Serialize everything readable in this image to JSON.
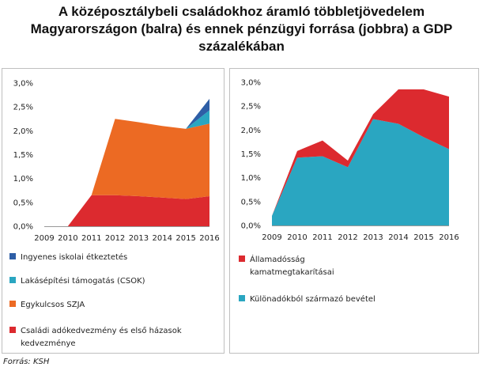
{
  "title_lines": [
    "A középosztálybeli családokhoz áramló többletjövedelem",
    "Magyarországon (balra) és ennek pénzügyi forrása (jobbra) a GDP",
    "százalékában"
  ],
  "source": "Forrás: KSH",
  "chart_data": [
    {
      "type": "area",
      "stacked": true,
      "x": [
        "2009",
        "2010",
        "2011",
        "2012",
        "2013",
        "2014",
        "2015",
        "2016"
      ],
      "yticks": [
        "0,0%",
        "0,5%",
        "1,0%",
        "1,5%",
        "2,0%",
        "2,5%",
        "3,0%"
      ],
      "ylim": [
        0,
        3.0
      ],
      "series": [
        {
          "name": "Családi adókedvezmény és első házasok kedvezménye",
          "name_lines": [
            "Családi adókedvezmény és első házasok",
            "kedvezménye"
          ],
          "color": "#dc2a2f",
          "values": [
            0,
            0,
            0.65,
            0.65,
            0.63,
            0.6,
            0.57,
            0.63
          ]
        },
        {
          "name": "Egykulcsos SZJA",
          "name_lines": [
            "Egykulcsos SZJA"
          ],
          "color": "#ec6a23",
          "values": [
            0,
            0,
            0,
            1.6,
            1.55,
            1.5,
            1.47,
            1.52
          ]
        },
        {
          "name": "Lakásépítési támogatás (CSOK)",
          "name_lines": [
            "Lakásépítési támogatás (CSOK)"
          ],
          "color": "#2aa6c1",
          "values": [
            0,
            0,
            0,
            0,
            0,
            0,
            0,
            0.28
          ]
        },
        {
          "name": "Ingyenes iskolai étkeztetés",
          "name_lines": [
            "Ingyenes iskolai étkeztetés"
          ],
          "color": "#2e5ea6",
          "values": [
            0,
            0,
            0,
            0,
            0,
            0,
            0,
            0.24
          ]
        }
      ]
    },
    {
      "type": "area",
      "stacked": true,
      "x": [
        "2009",
        "2010",
        "2011",
        "2012",
        "2013",
        "2014",
        "2015",
        "2016"
      ],
      "yticks": [
        "0,0%",
        "0,5%",
        "1,0%",
        "1,5%",
        "2,0%",
        "2,5%",
        "3,0%"
      ],
      "ylim": [
        0,
        3.0
      ],
      "series": [
        {
          "name": "Különadókból származó bevétel",
          "name_lines": [
            "Különadókból származó bevétel"
          ],
          "color": "#2aa6c1",
          "values": [
            0.2,
            1.42,
            1.45,
            1.22,
            2.23,
            2.13,
            1.85,
            1.6
          ]
        },
        {
          "name": "Államadósság kamatmegtakarításai",
          "name_lines": [
            "Államadósság",
            "kamatmegtakarításai"
          ],
          "color": "#dc2a2f",
          "values": [
            0,
            0.14,
            0.33,
            0.14,
            0.1,
            0.72,
            1.0,
            1.1
          ]
        }
      ]
    }
  ]
}
